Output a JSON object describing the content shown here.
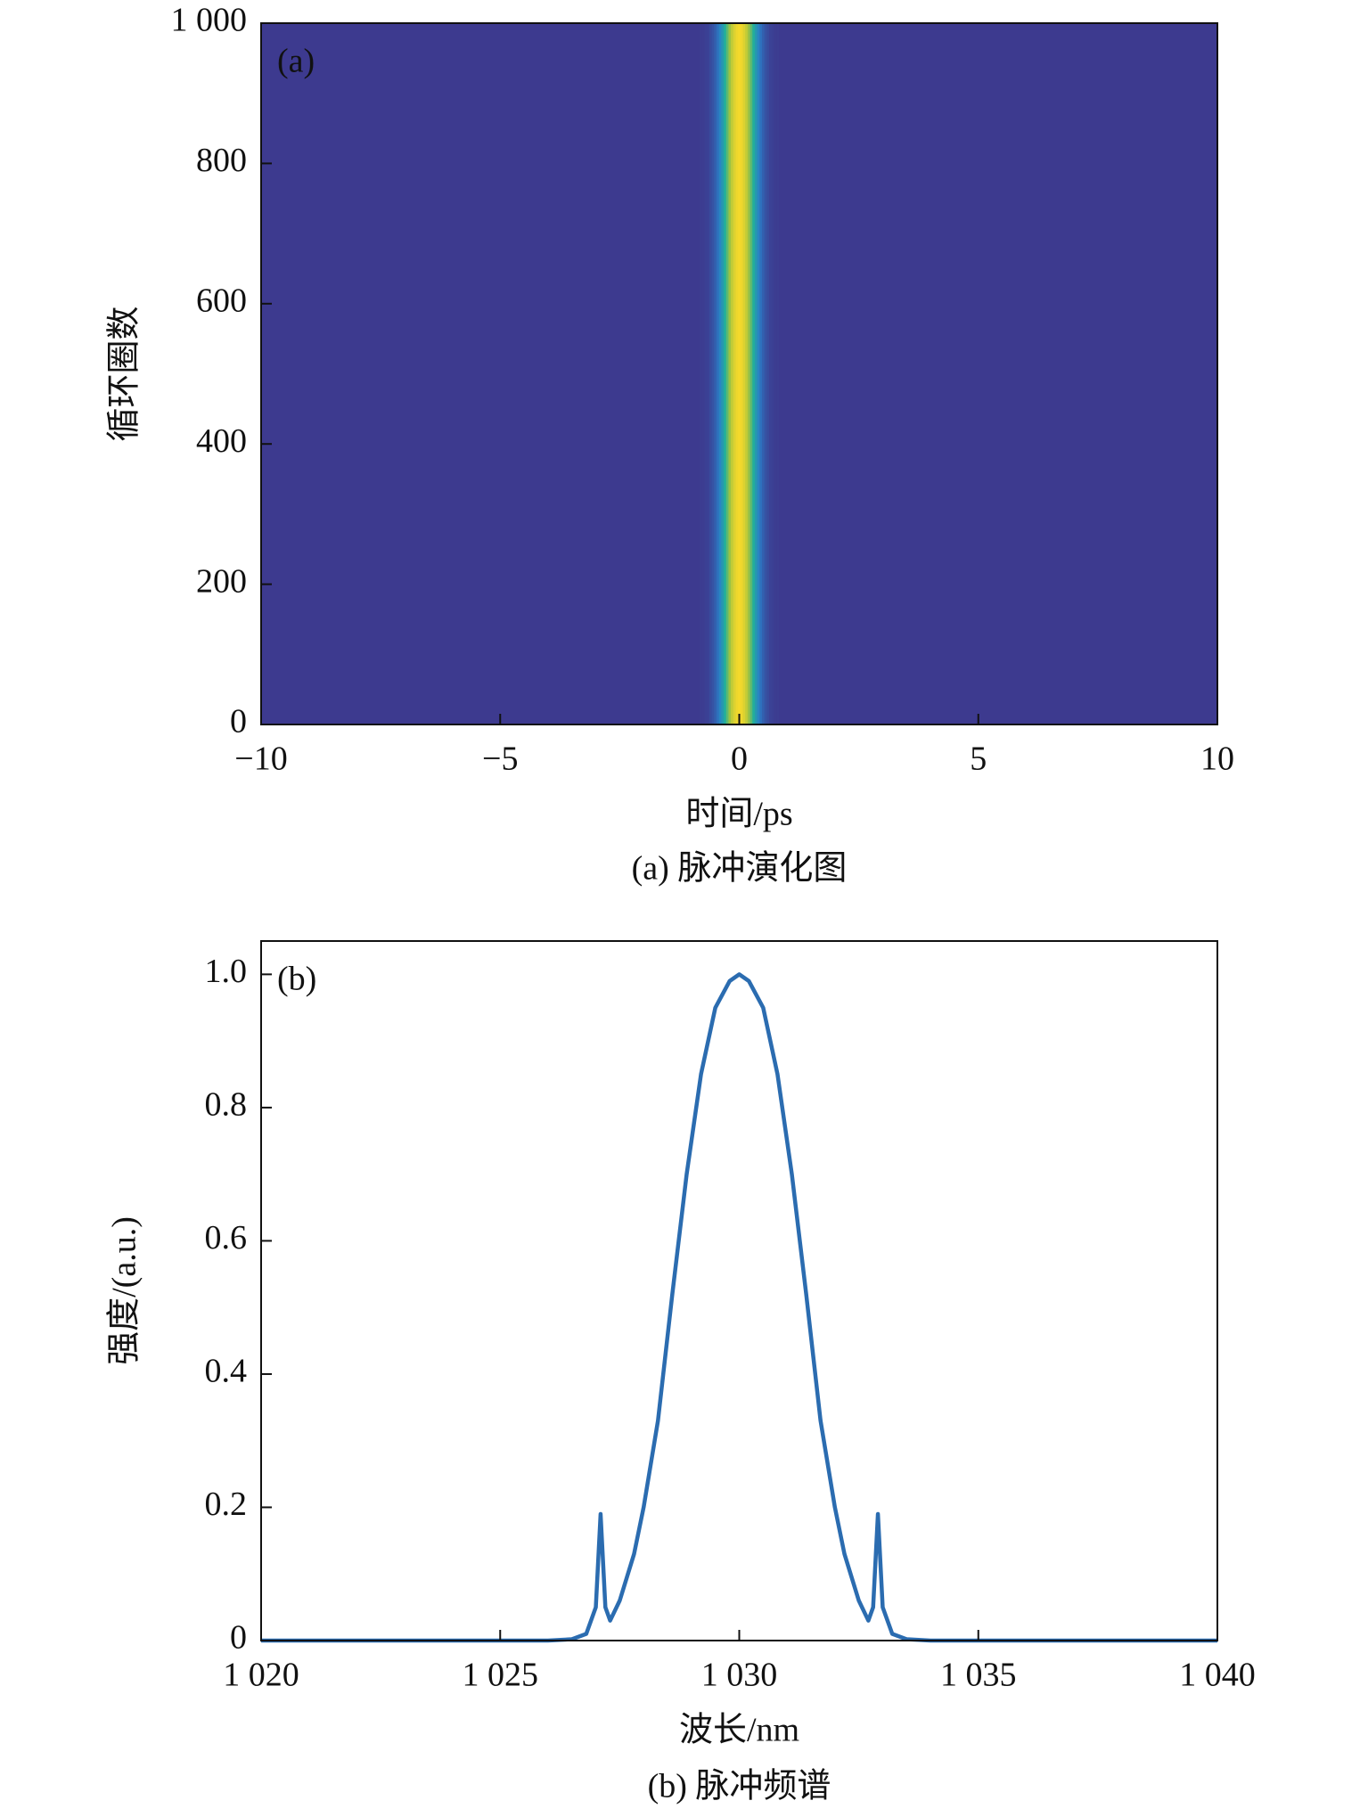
{
  "chart_data": [
    {
      "type": "heatmap",
      "panel_label": "(a)",
      "xlabel": "时间/ps",
      "ylabel": "循环圈数",
      "caption": "(a) 脉冲演化图",
      "xlim": [
        -10,
        10
      ],
      "ylim": [
        0,
        1000
      ],
      "xticks": [
        {
          "value": -10,
          "label": "−10"
        },
        {
          "value": -5,
          "label": "−5"
        },
        0,
        5,
        10
      ],
      "yticks": [
        0,
        200,
        400,
        600,
        800,
        {
          "value": 1000,
          "label": "1 000"
        }
      ],
      "colormap": [
        "#3d3a8f",
        "#2a7fc8",
        "#22b09a",
        "#a6c43e",
        "#f4d92b"
      ],
      "x": [
        -0.8,
        -0.75,
        -0.7,
        -0.65,
        -0.6,
        -0.55,
        -0.5,
        -0.45,
        -0.4,
        -0.35,
        -0.3,
        -0.25,
        -0.2,
        -0.15,
        -0.1,
        -0.05,
        0,
        0.05,
        0.1,
        0.15,
        0.2,
        0.25,
        0.3,
        0.35,
        0.4,
        0.45,
        0.5,
        0.55,
        0.6,
        0.65,
        0.7,
        0.75,
        0.8
      ],
      "values": [
        0.01,
        0.01,
        0.02,
        0.03,
        0.06,
        0.09,
        0.14,
        0.2,
        0.28,
        0.38,
        0.49,
        0.61,
        0.73,
        0.84,
        0.92,
        0.98,
        1,
        0.98,
        0.92,
        0.84,
        0.73,
        0.61,
        0.49,
        0.38,
        0.28,
        0.2,
        0.14,
        0.09,
        0.06,
        0.03,
        0.02,
        0.01,
        0.01
      ]
    },
    {
      "type": "line",
      "panel_label": "(b)",
      "xlabel": "波长/nm",
      "ylabel": "强度/(a.u.)",
      "caption": "(b) 脉冲频谱",
      "xlim": [
        1020,
        1040
      ],
      "ylim": [
        0,
        1.05
      ],
      "xticks": [
        {
          "value": 1020,
          "label": "1 020"
        },
        {
          "value": 1025,
          "label": "1 025"
        },
        {
          "value": 1030,
          "label": "1 030"
        },
        {
          "value": 1035,
          "label": "1 035"
        },
        {
          "value": 1040,
          "label": "1 040"
        }
      ],
      "yticks": [
        0,
        0.2,
        0.4,
        0.6,
        0.8,
        {
          "value": 1,
          "label": "1.0"
        }
      ],
      "color": "#2b6cb0",
      "x": [
        1020,
        1025,
        1026,
        1026.5,
        1026.8,
        1027.0,
        1027.1,
        1027.2,
        1027.3,
        1027.5,
        1027.8,
        1028.0,
        1028.3,
        1028.6,
        1028.9,
        1029.2,
        1029.5,
        1029.8,
        1030,
        1030.2,
        1030.5,
        1030.8,
        1031.1,
        1031.4,
        1031.7,
        1032.0,
        1032.2,
        1032.5,
        1032.7,
        1032.8,
        1032.9,
        1033.0,
        1033.2,
        1033.5,
        1034,
        1035,
        1040
      ],
      "values": [
        0,
        0,
        0,
        0.002,
        0.01,
        0.05,
        0.19,
        0.05,
        0.03,
        0.06,
        0.13,
        0.2,
        0.33,
        0.52,
        0.7,
        0.85,
        0.95,
        0.99,
        1,
        0.99,
        0.95,
        0.85,
        0.7,
        0.52,
        0.33,
        0.2,
        0.13,
        0.06,
        0.03,
        0.05,
        0.19,
        0.05,
        0.01,
        0.002,
        0,
        0,
        0
      ]
    }
  ]
}
